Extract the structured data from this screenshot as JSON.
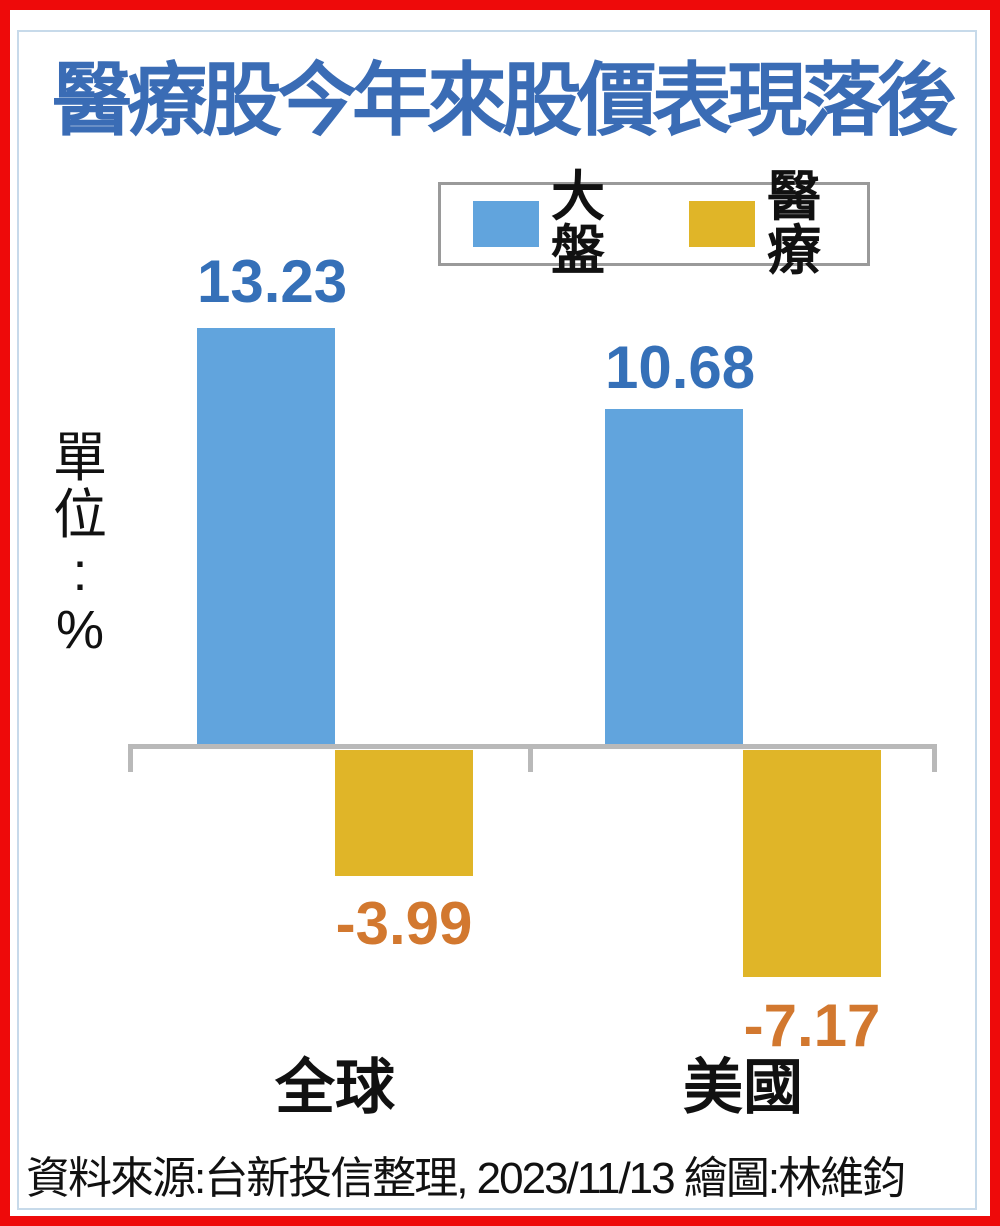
{
  "title": "醫療股今年來股價表現落後",
  "unit_label": {
    "text": "單位:%",
    "chars": [
      "單",
      "位",
      ":",
      "%"
    ]
  },
  "legend": {
    "items": [
      {
        "label": "大盤",
        "color": "#61a4dd"
      },
      {
        "label": "醫療",
        "color": "#e0b528"
      }
    ]
  },
  "footer": {
    "text": "資料來源:台新投信整理, 2023/11/13 繪圖:林維鈞"
  },
  "colors": {
    "frame_border": "#ee0a0a",
    "inner_line": "#c7daea",
    "title": "#3a6cb5",
    "axis": "#b9b9b9",
    "positive_value_label": "#3570b8",
    "negative_value_label": "#d2782f",
    "text": "#111111"
  },
  "chart_data": {
    "type": "bar",
    "title": "醫療股今年來股價表現落後",
    "ylabel": "單位:%",
    "unit": "%",
    "categories": [
      "全球",
      "美國"
    ],
    "series": [
      {
        "name": "大盤",
        "color": "#61a4dd",
        "values": [
          13.23,
          10.68
        ],
        "labels": [
          "13.23",
          "10.68"
        ]
      },
      {
        "name": "醫療",
        "color": "#e0b528",
        "values": [
          -3.99,
          -7.17
        ],
        "labels": [
          "-3.99",
          "-7.17"
        ]
      }
    ],
    "baseline": 0,
    "grid": false,
    "legend_position": "top-right",
    "source_note": "資料來源:台新投信整理, 2023/11/13",
    "illustrator_note": "繪圖:林維鈞"
  }
}
